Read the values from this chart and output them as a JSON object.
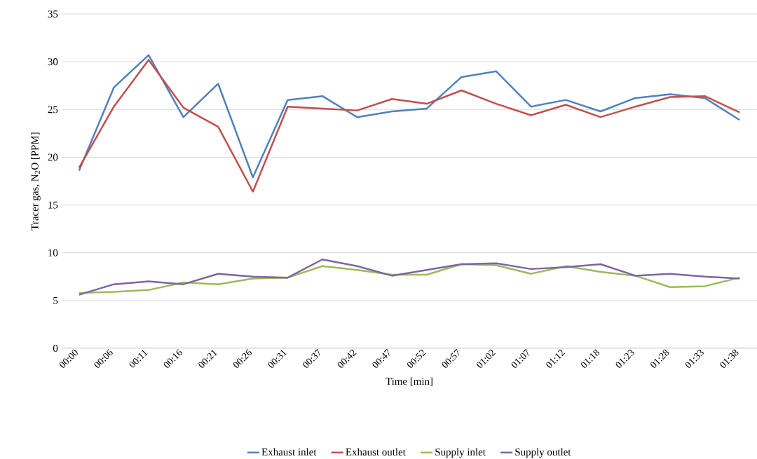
{
  "chart_data": {
    "type": "line",
    "xlabel": "Time [min]",
    "ylabel": "Tracer gas, N$_{2}$O [PPM]",
    "categories": [
      "00:00",
      "00:06",
      "00:11",
      "00:16",
      "00:21",
      "00:26",
      "00:31",
      "00:37",
      "00:42",
      "00:47",
      "00:52",
      "00:57",
      "01:02",
      "01:07",
      "01:12",
      "01:18",
      "01:23",
      "01:28",
      "01:33",
      "01:38"
    ],
    "series": [
      {
        "name": "Exhaust inlet",
        "color": "#4f81bd",
        "values": [
          18.6,
          27.3,
          30.7,
          24.2,
          27.7,
          17.9,
          26.0,
          26.4,
          24.2,
          24.8,
          25.1,
          28.4,
          29.0,
          25.3,
          26.0,
          24.8,
          26.2,
          26.6,
          26.2,
          23.9
        ]
      },
      {
        "name": "Exhaust outlet",
        "color": "#c0504d",
        "values": [
          18.9,
          25.3,
          30.2,
          25.2,
          23.2,
          16.4,
          25.3,
          25.1,
          24.9,
          26.1,
          25.6,
          27.0,
          25.6,
          24.4,
          25.5,
          24.2,
          25.3,
          26.3,
          26.4,
          24.7
        ]
      },
      {
        "name": "Supply inlet",
        "color": "#9bbb59",
        "values": [
          5.8,
          5.9,
          6.1,
          6.9,
          6.7,
          7.3,
          7.4,
          8.6,
          8.2,
          7.7,
          7.7,
          8.8,
          8.7,
          7.8,
          8.6,
          8.0,
          7.6,
          6.4,
          6.5,
          7.4
        ]
      },
      {
        "name": "Supply outlet",
        "color": "#8064a2",
        "values": [
          5.6,
          6.7,
          7.0,
          6.7,
          7.8,
          7.5,
          7.4,
          9.3,
          8.6,
          7.6,
          8.2,
          8.8,
          8.9,
          8.3,
          8.5,
          8.8,
          7.6,
          7.8,
          7.5,
          7.3
        ]
      }
    ],
    "ylim": [
      0,
      35
    ],
    "yticks": [
      0,
      5,
      10,
      15,
      20,
      25,
      30,
      35
    ],
    "grid": "y",
    "legend": "bottom",
    "marker": "none",
    "line_style": "solid"
  }
}
